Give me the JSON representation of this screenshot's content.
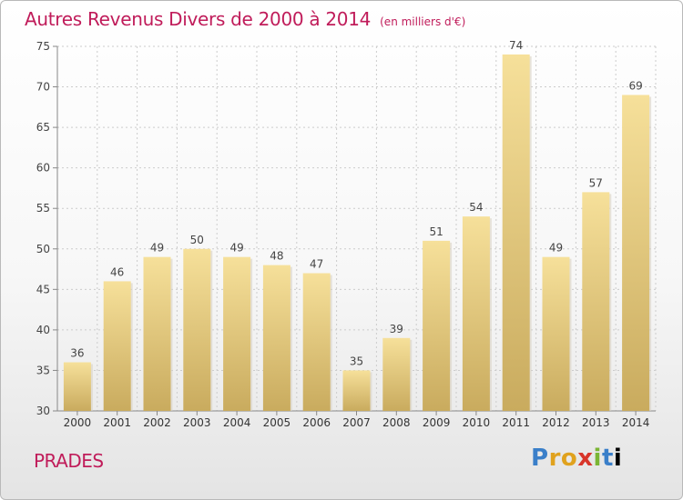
{
  "title": "Autres Revenus Divers de 2000 à 2014",
  "subtitle": "(en milliers d'€)",
  "place": "PRADES",
  "logo": {
    "letters": [
      "P",
      "r",
      "o",
      "x",
      "i",
      "t",
      "i"
    ],
    "name": "Proxiti"
  },
  "colors": {
    "title": "#c01c5a",
    "bar_light": "#f6e09a",
    "bar_dark": "#c9ab5e",
    "grid": "#cccccc"
  },
  "chart_data": {
    "type": "bar",
    "title": "Autres Revenus Divers de 2000 à 2014",
    "subtitle": "(en milliers d'€)",
    "xlabel": "",
    "ylabel": "",
    "categories": [
      "2000",
      "2001",
      "2002",
      "2003",
      "2004",
      "2005",
      "2006",
      "2007",
      "2008",
      "2009",
      "2010",
      "2011",
      "2012",
      "2013",
      "2014"
    ],
    "values": [
      36,
      46,
      49,
      50,
      49,
      48,
      47,
      35,
      39,
      51,
      54,
      74,
      49,
      57,
      69
    ],
    "ylim": [
      30,
      75
    ],
    "yticks": [
      30,
      35,
      40,
      45,
      50,
      55,
      60,
      65,
      70,
      75
    ],
    "grid": true,
    "legend": "none"
  }
}
